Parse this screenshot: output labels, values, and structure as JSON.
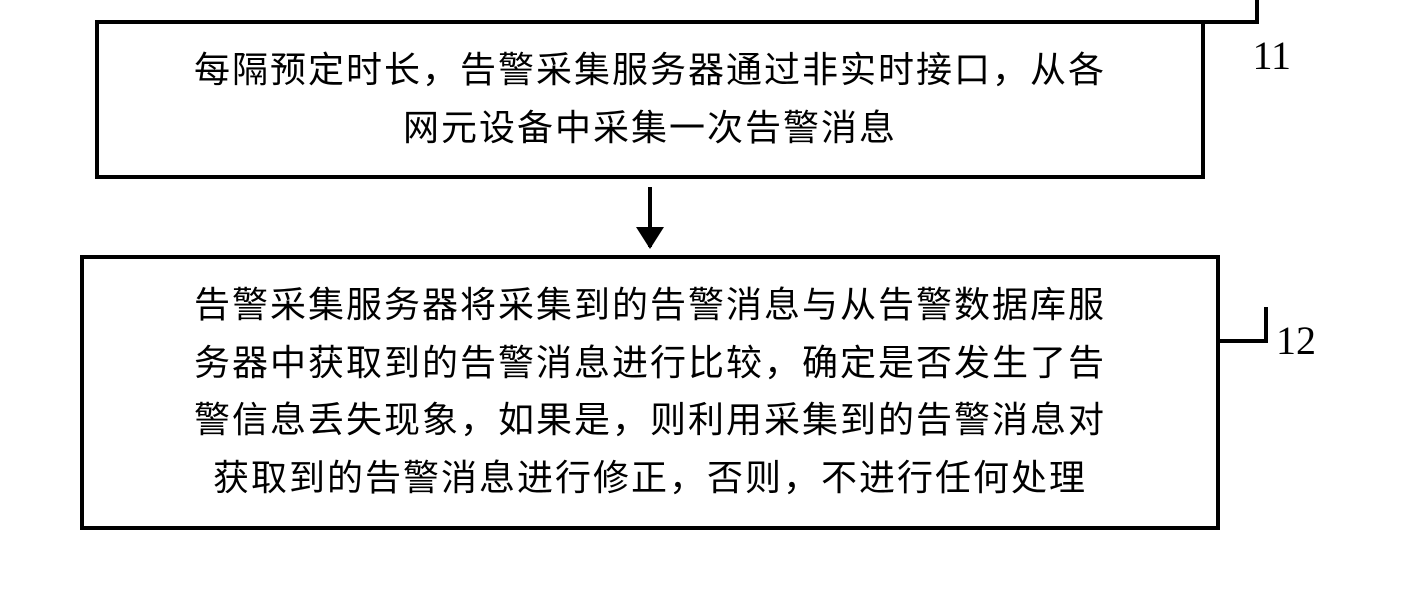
{
  "flowchart": {
    "boxes": [
      {
        "label": "11",
        "lines": [
          "每隔预定时长，告警采集服务器通过非实时接口，从各",
          "网元设备中采集一次告警消息"
        ]
      },
      {
        "label": "12",
        "lines": [
          "告警采集服务器将采集到的告警消息与从告警数据库服",
          "务器中获取到的告警消息进行比较，确定是否发生了告",
          "警信息丢失现象，如果是，则利用采集到的告警消息对",
          "获取到的告警消息进行修正，否则，不进行任何处理"
        ]
      }
    ],
    "styling": {
      "box_border_color": "#000000",
      "box_border_width": 4,
      "background_color": "#ffffff",
      "text_color": "#000000",
      "font_size": 36,
      "label_font_size": 40,
      "font_family": "SimSun",
      "arrow_color": "#000000",
      "arrow_line_width": 4,
      "arrow_head_width": 28,
      "arrow_head_height": 22
    }
  }
}
